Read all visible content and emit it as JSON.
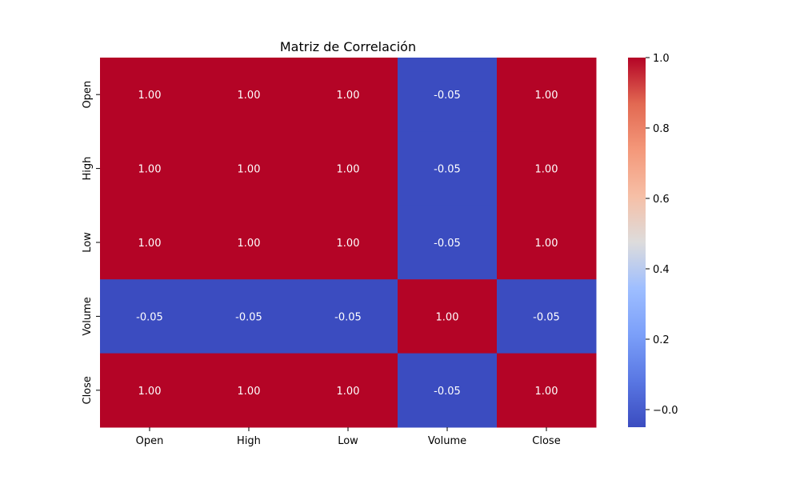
{
  "chart_data": {
    "type": "heatmap",
    "title": "Matriz de Correlación",
    "rows": [
      "Open",
      "High",
      "Low",
      "Volume",
      "Close"
    ],
    "columns": [
      "Open",
      "High",
      "Low",
      "Volume",
      "Close"
    ],
    "values": [
      [
        1.0,
        1.0,
        1.0,
        -0.05,
        1.0
      ],
      [
        1.0,
        1.0,
        1.0,
        -0.05,
        1.0
      ],
      [
        1.0,
        1.0,
        1.0,
        -0.05,
        1.0
      ],
      [
        -0.05,
        -0.05,
        -0.05,
        1.0,
        -0.05
      ],
      [
        1.0,
        1.0,
        1.0,
        -0.05,
        1.0
      ]
    ],
    "cell_labels": [
      [
        "1.00",
        "1.00",
        "1.00",
        "-0.05",
        "1.00"
      ],
      [
        "1.00",
        "1.00",
        "1.00",
        "-0.05",
        "1.00"
      ],
      [
        "1.00",
        "1.00",
        "1.00",
        "-0.05",
        "1.00"
      ],
      [
        "-0.05",
        "-0.05",
        "-0.05",
        "1.00",
        "-0.05"
      ],
      [
        "1.00",
        "1.00",
        "1.00",
        "-0.05",
        "1.00"
      ]
    ],
    "colorscale": "coolwarm",
    "color_min": "#3b4cc0",
    "color_max": "#b40426",
    "vmin": -0.05,
    "vmax": 1.0,
    "colorbar": {
      "ticks": [
        -0.0,
        0.2,
        0.4,
        0.6,
        0.8,
        1.0
      ],
      "tick_labels": [
        "−0.0",
        "0.2",
        "0.4",
        "0.6",
        "0.8",
        "1.0"
      ]
    },
    "grid": false,
    "legend": "colorbar-right"
  }
}
